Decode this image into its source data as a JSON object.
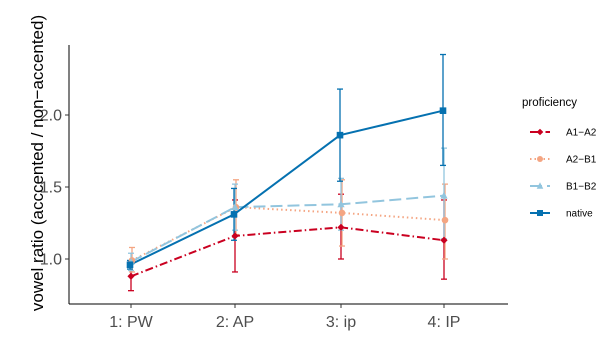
{
  "chart_data": {
    "type": "line",
    "title": "",
    "xlabel": "",
    "ylabel": "vowel ratio (acccented / non−accented)",
    "categories": [
      "1: PW",
      "2: AP",
      "3: ip",
      "4: IP"
    ],
    "y_ticks": [
      "1.0",
      "1.5",
      "2.0"
    ],
    "ylim": [
      0.72,
      2.45
    ],
    "grid": false,
    "legend": {
      "title": "proficiency",
      "position": "right"
    },
    "series": [
      {
        "name": "A1−A2",
        "color": "#ca0020",
        "dash": "dashdot",
        "marker": "diamond",
        "values": [
          0.88,
          1.16,
          1.22,
          1.13
        ],
        "err_low": [
          0.78,
          0.91,
          1.0,
          0.86
        ],
        "err_high": [
          0.98,
          1.41,
          1.45,
          1.41
        ]
      },
      {
        "name": "A2−B1",
        "color": "#f4a582",
        "dash": "dotted",
        "marker": "circle",
        "values": [
          0.99,
          1.36,
          1.32,
          1.27
        ],
        "err_low": [
          0.91,
          1.17,
          1.09,
          1.0
        ],
        "err_high": [
          1.08,
          1.55,
          1.55,
          1.52
        ]
      },
      {
        "name": "B1−B2",
        "color": "#92c5de",
        "dash": "longdash",
        "marker": "triangle",
        "values": [
          0.98,
          1.36,
          1.38,
          1.44
        ],
        "err_low": [
          0.92,
          1.2,
          1.2,
          1.14
        ],
        "err_high": [
          1.04,
          1.52,
          1.56,
          1.77
        ]
      },
      {
        "name": "native",
        "color": "#0571b0",
        "dash": "solid",
        "marker": "square",
        "values": [
          0.96,
          1.31,
          1.86,
          2.03
        ],
        "err_low": [
          0.93,
          1.13,
          1.54,
          1.65
        ],
        "err_high": [
          0.99,
          1.49,
          2.18,
          2.42
        ]
      }
    ]
  }
}
